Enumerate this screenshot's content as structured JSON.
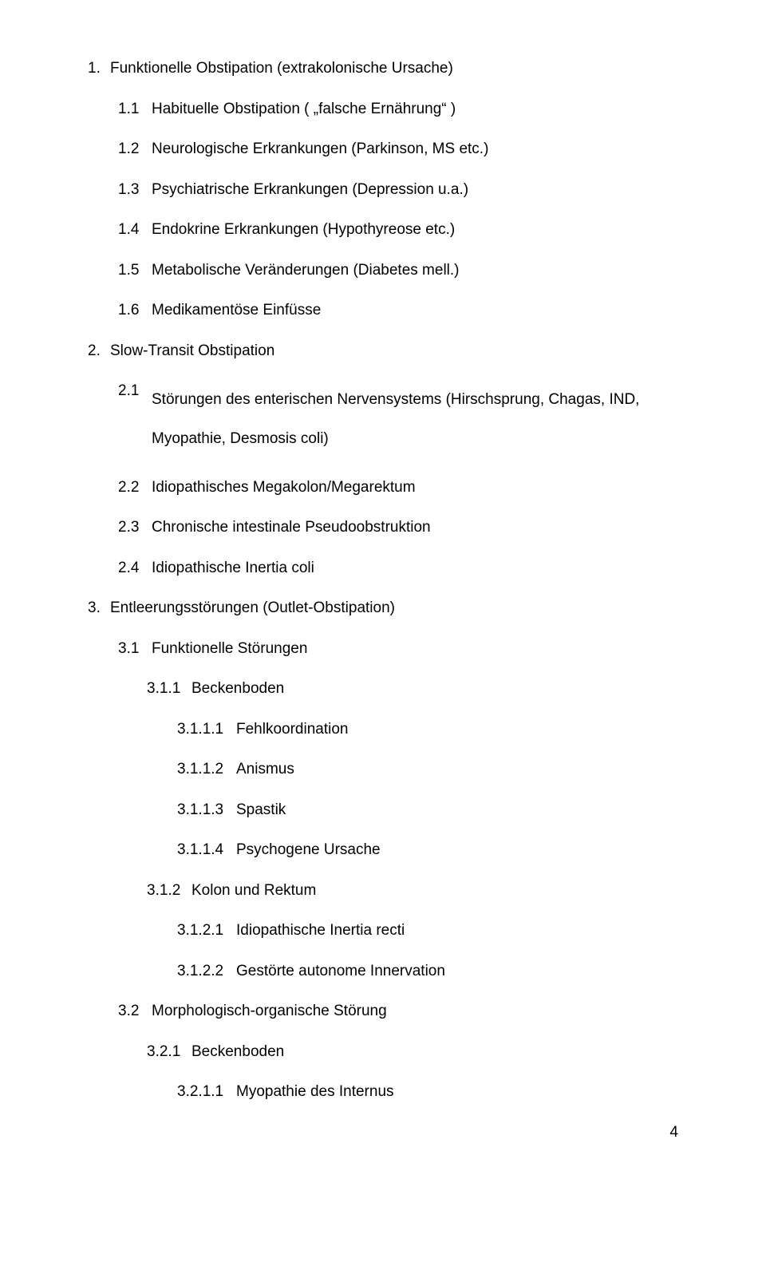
{
  "items": [
    {
      "level": 1,
      "num": "1. ",
      "text": "Funktionelle Obstipation (extrakolonische Ursache)"
    },
    {
      "level": 2,
      "num": "1.1 ",
      "text": "Habituelle Obstipation ( „falsche Ernährung“ )"
    },
    {
      "level": 2,
      "num": "1.2 ",
      "text": "Neurologische Erkrankungen (Parkinson, MS etc.)"
    },
    {
      "level": 2,
      "num": "1.3 ",
      "text": "Psychiatrische Erkrankungen (Depression u.a.)"
    },
    {
      "level": 2,
      "num": "1.4 ",
      "text": "Endokrine Erkrankungen (Hypothyreose etc.)"
    },
    {
      "level": 2,
      "num": "1.5 ",
      "text": "Metabolische Veränderungen (Diabetes mell.)"
    },
    {
      "level": 2,
      "num": "1.6 ",
      "text": "Medikamentöse Einfüsse"
    },
    {
      "level": 1,
      "num": "2. ",
      "text": "Slow-Transit Obstipation"
    },
    {
      "level": 2,
      "num": "2.1 ",
      "text": "Störungen des enterischen Nervensystems (Hirschsprung, Chagas, IND, Myopathie, Desmosis coli)",
      "wrap": true
    },
    {
      "level": 2,
      "num": "2.2 ",
      "text": "Idiopathisches Megakolon/Megarektum"
    },
    {
      "level": 2,
      "num": "2.3 ",
      "text": "Chronische intestinale Pseudoobstruktion"
    },
    {
      "level": 2,
      "num": "2.4 ",
      "text": "Idiopathische Inertia coli"
    },
    {
      "level": 1,
      "num": "3. ",
      "text": "Entleerungsstörungen (Outlet-Obstipation)"
    },
    {
      "level": 2,
      "num": "3.1 ",
      "text": "Funktionelle Störungen"
    },
    {
      "level": 3,
      "num": "3.1.1 ",
      "text": "Beckenboden"
    },
    {
      "level": 4,
      "num": "3.1.1.1 ",
      "text": "Fehlkoordination"
    },
    {
      "level": 4,
      "num": "3.1.1.2 ",
      "text": "Anismus"
    },
    {
      "level": 4,
      "num": "3.1.1.3 ",
      "text": "Spastik"
    },
    {
      "level": 4,
      "num": "3.1.1.4 ",
      "text": "Psychogene Ursache"
    },
    {
      "level": 3,
      "num": "3.1.2 ",
      "text": "Kolon und Rektum"
    },
    {
      "level": 4,
      "num": "3.1.2.1 ",
      "text": "Idiopathische Inertia recti"
    },
    {
      "level": 4,
      "num": "3.1.2.2 ",
      "text": "Gestörte autonome Innervation"
    },
    {
      "level": 2,
      "num": "3.2 ",
      "text": "Morphologisch-organische Störung"
    },
    {
      "level": 3,
      "num": "3.2.1 ",
      "text": "Beckenboden"
    },
    {
      "level": 4,
      "num": "3.2.1.1 ",
      "text": "Myopathie des Internus"
    }
  ],
  "indent_num_widths": {
    "1": 28,
    "2": 42,
    "3": 56,
    "4": 74
  },
  "page_number": "4"
}
